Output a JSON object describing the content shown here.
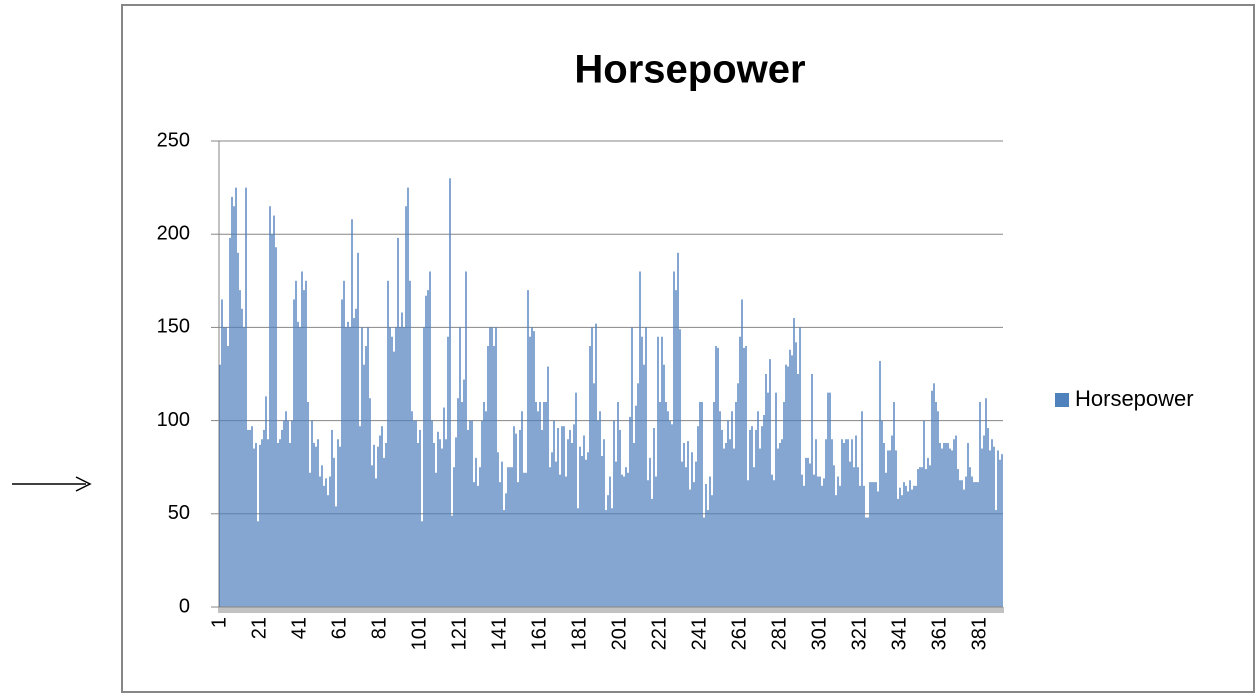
{
  "chart_data": {
    "type": "bar",
    "title": "Horsepower",
    "categories": [
      1,
      null,
      null,
      null,
      null,
      null,
      null,
      null,
      null,
      null,
      null,
      null,
      null,
      null,
      null,
      null,
      null,
      null,
      null,
      null,
      21,
      null,
      null,
      null,
      null,
      null,
      null,
      null,
      null,
      null,
      null,
      null,
      null,
      null,
      null,
      null,
      null,
      null,
      null,
      null,
      41,
      null,
      null,
      null,
      null,
      null,
      null,
      null,
      null,
      null,
      null,
      null,
      null,
      null,
      null,
      null,
      null,
      null,
      null,
      null,
      61,
      null,
      null,
      null,
      null,
      null,
      null,
      null,
      null,
      null,
      null,
      null,
      null,
      null,
      null,
      null,
      null,
      null,
      null,
      null,
      81,
      null,
      null,
      null,
      null,
      null,
      null,
      null,
      null,
      null,
      null,
      null,
      null,
      null,
      null,
      null,
      null,
      null,
      null,
      null,
      101,
      null,
      null,
      null,
      null,
      null,
      null,
      null,
      null,
      null,
      null,
      null,
      null,
      null,
      null,
      null,
      null,
      null,
      null,
      null,
      121,
      null,
      null,
      null,
      null,
      null,
      null,
      null,
      null,
      null,
      null,
      null,
      null,
      null,
      null,
      null,
      null,
      null,
      null,
      null,
      141,
      null,
      null,
      null,
      null,
      null,
      null,
      null,
      null,
      null,
      null,
      null,
      null,
      null,
      null,
      null,
      null,
      null,
      null,
      null,
      161,
      null,
      null,
      null,
      null,
      null,
      null,
      null,
      null,
      null,
      null,
      null,
      null,
      null,
      null,
      null,
      null,
      null,
      null,
      null,
      181,
      null,
      null,
      null,
      null,
      null,
      null,
      null,
      null,
      null,
      null,
      null,
      null,
      null,
      null,
      null,
      null,
      null,
      null,
      null,
      201,
      null,
      null,
      null,
      null,
      null,
      null,
      null,
      null,
      null,
      null,
      null,
      null,
      null,
      null,
      null,
      null,
      null,
      null,
      null,
      221,
      null,
      null,
      null,
      null,
      null,
      null,
      null,
      null,
      null,
      null,
      null,
      null,
      null,
      null,
      null,
      null,
      null,
      null,
      null,
      241,
      null,
      null,
      null,
      null,
      null,
      null,
      null,
      null,
      null,
      null,
      null,
      null,
      null,
      null,
      null,
      null,
      null,
      null,
      null,
      261,
      null,
      null,
      null,
      null,
      null,
      null,
      null,
      null,
      null,
      null,
      null,
      null,
      null,
      null,
      null,
      null,
      null,
      null,
      null,
      281,
      null,
      null,
      null,
      null,
      null,
      null,
      null,
      null,
      null,
      null,
      null,
      null,
      null,
      null,
      null,
      null,
      null,
      null,
      null,
      301,
      null,
      null,
      null,
      null,
      null,
      null,
      null,
      null,
      null,
      null,
      null,
      null,
      null,
      null,
      null,
      null,
      null,
      null,
      null,
      321,
      null,
      null,
      null,
      null,
      null,
      null,
      null,
      null,
      null,
      null,
      null,
      null,
      null,
      null,
      null,
      null,
      null,
      null,
      null,
      341,
      null,
      null,
      null,
      null,
      null,
      null,
      null,
      null,
      null,
      null,
      null,
      null,
      null,
      null,
      null,
      null,
      null,
      null,
      null,
      361,
      null,
      null,
      null,
      null,
      null,
      null,
      null,
      null,
      null,
      null,
      null,
      null,
      null,
      null,
      null,
      null,
      null,
      null,
      null,
      381,
      null,
      null,
      null,
      null,
      null,
      null,
      null,
      null,
      null,
      null,
      null
    ],
    "series": [
      {
        "name": "Horsepower",
        "color": "#4f81bd",
        "values": [
          130,
          165,
          150,
          150,
          140,
          198,
          220,
          215,
          225,
          190,
          170,
          160,
          150,
          225,
          95,
          95,
          97,
          85,
          88,
          46,
          87,
          90,
          95,
          113,
          90,
          215,
          200,
          210,
          193,
          88,
          90,
          95,
          100,
          105,
          100,
          88,
          100,
          165,
          175,
          153,
          150,
          180,
          170,
          175,
          110,
          72,
          100,
          88,
          86,
          90,
          70,
          76,
          65,
          69,
          60,
          70,
          95,
          80,
          54,
          90,
          86,
          165,
          175,
          150,
          153,
          150,
          208,
          155,
          160,
          190,
          97,
          150,
          130,
          140,
          150,
          112,
          76,
          87,
          69,
          86,
          92,
          97,
          80,
          88,
          175,
          150,
          145,
          137,
          150,
          198,
          150,
          158,
          150,
          215,
          225,
          175,
          105,
          100,
          100,
          88,
          95,
          46,
          150,
          167,
          170,
          180,
          100,
          88,
          72,
          94,
          90,
          85,
          107,
          90,
          145,
          230,
          49,
          75,
          91,
          112,
          150,
          110,
          122,
          180,
          95,
          100,
          100,
          67,
          80,
          65,
          75,
          100,
          110,
          105,
          140,
          150,
          150,
          140,
          150,
          83,
          67,
          78,
          52,
          61,
          75,
          75,
          75,
          97,
          93,
          67,
          95,
          105,
          72,
          72,
          170,
          145,
          150,
          148,
          110,
          105,
          110,
          95,
          110,
          110,
          129,
          75,
          83,
          100,
          78,
          96,
          71,
          97,
          97,
          70,
          90,
          95,
          88,
          98,
          115,
          53,
          86,
          81,
          92,
          79,
          83,
          140,
          150,
          120,
          152,
          100,
          105,
          81,
          90,
          52,
          60,
          70,
          53,
          100,
          78,
          110,
          95,
          71,
          70,
          75,
          72,
          102,
          150,
          88,
          108,
          120,
          180,
          145,
          130,
          150,
          68,
          80,
          58,
          96,
          70,
          145,
          110,
          145,
          130,
          110,
          105,
          100,
          98,
          180,
          170,
          190,
          149,
          78,
          88,
          75,
          89,
          63,
          83,
          67,
          78,
          97,
          110,
          110,
          48,
          66,
          52,
          70,
          60,
          110,
          140,
          139,
          105,
          95,
          85,
          88,
          100,
          90,
          105,
          85,
          110,
          120,
          145,
          165,
          139,
          140,
          68,
          95,
          97,
          75,
          95,
          105,
          85,
          97,
          103,
          125,
          115,
          133,
          71,
          68,
          115,
          85,
          88,
          90,
          110,
          130,
          129,
          138,
          135,
          155,
          142,
          125,
          150,
          71,
          65,
          80,
          80,
          77,
          125,
          71,
          90,
          70,
          70,
          65,
          69,
          90,
          115,
          115,
          90,
          76,
          60,
          70,
          65,
          90,
          88,
          90,
          90,
          78,
          90,
          75,
          92,
          75,
          65,
          105,
          65,
          48,
          48,
          67,
          67,
          67,
          67,
          62,
          132,
          100,
          88,
          72,
          84,
          84,
          92,
          110,
          84,
          58,
          64,
          60,
          67,
          65,
          62,
          68,
          63,
          65,
          65,
          74,
          75,
          75,
          100,
          74,
          80,
          76,
          116,
          120,
          110,
          105,
          88,
          85,
          88,
          88,
          88,
          85,
          84,
          90,
          92,
          74,
          68,
          68,
          63,
          70,
          88,
          75,
          70,
          67,
          67,
          67,
          110,
          85,
          92,
          112,
          96,
          84,
          90,
          86,
          52,
          84,
          79,
          82
        ]
      }
    ],
    "ylim": [
      0,
      250
    ],
    "yticks": [
      0,
      50,
      100,
      150,
      200,
      250
    ],
    "grid": true,
    "legend": "right"
  }
}
